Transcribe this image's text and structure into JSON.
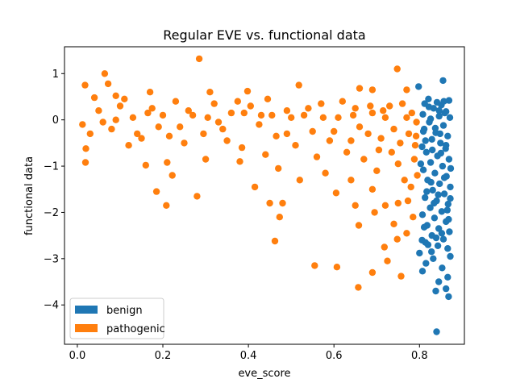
{
  "chart_data": {
    "type": "scatter",
    "title": "Regular EVE vs. functional data",
    "xlabel": "eve_score",
    "ylabel": "functional data",
    "xlim": [
      -0.03,
      0.905
    ],
    "ylim": [
      -4.85,
      1.58
    ],
    "xticks": [
      0.0,
      0.2,
      0.4,
      0.6,
      0.8
    ],
    "xtick_labels": [
      "0.0",
      "0.2",
      "0.4",
      "0.6",
      "0.8"
    ],
    "yticks": [
      1,
      0,
      -1,
      -2,
      -3,
      -4
    ],
    "ytick_labels": [
      "1",
      "0",
      "−1",
      "−2",
      "−3",
      "−4"
    ],
    "grid": false,
    "legend_position": "lower-left",
    "series": [
      {
        "name": "benign",
        "color": "#1f77b4",
        "points": [
          [
            0.798,
            0.72
          ],
          [
            0.855,
            0.85
          ],
          [
            0.8,
            -2.88
          ],
          [
            0.84,
            -4.58
          ],
          [
            0.838,
            -3.7
          ],
          [
            0.807,
            -3.27
          ],
          [
            0.815,
            -3.1
          ],
          [
            0.868,
            -3.82
          ],
          [
            0.845,
            -3.5
          ],
          [
            0.862,
            -3.65
          ],
          [
            0.828,
            -2.85
          ],
          [
            0.872,
            -2.95
          ],
          [
            0.832,
            -3.0
          ],
          [
            0.853,
            -3.2
          ],
          [
            0.806,
            -2.6
          ],
          [
            0.866,
            -3.4
          ],
          [
            0.821,
            0.45
          ],
          [
            0.841,
            0.38
          ],
          [
            0.869,
            0.42
          ],
          [
            0.812,
            0.35
          ],
          [
            0.851,
            0.32
          ],
          [
            0.833,
            0.25
          ],
          [
            0.862,
            0.18
          ],
          [
            0.808,
            0.12
          ],
          [
            0.846,
            0.08
          ],
          [
            0.871,
            0.05
          ],
          [
            0.823,
            -0.05
          ],
          [
            0.856,
            -0.12
          ],
          [
            0.811,
            -0.2
          ],
          [
            0.838,
            -0.28
          ],
          [
            0.866,
            -0.35
          ],
          [
            0.829,
            -0.42
          ],
          [
            0.849,
            -0.5
          ],
          [
            0.806,
            -0.58
          ],
          [
            0.861,
            -0.62
          ],
          [
            0.816,
            -0.7
          ],
          [
            0.842,
            -0.78
          ],
          [
            0.869,
            -0.85
          ],
          [
            0.826,
            -0.92
          ],
          [
            0.854,
            -1.0
          ],
          [
            0.809,
            -1.08
          ],
          [
            0.836,
            -1.15
          ],
          [
            0.863,
            -1.22
          ],
          [
            0.819,
            -1.3
          ],
          [
            0.847,
            -1.38
          ],
          [
            0.872,
            -1.45
          ],
          [
            0.831,
            -1.52
          ],
          [
            0.858,
            -1.6
          ],
          [
            0.813,
            -1.68
          ],
          [
            0.84,
            -1.75
          ],
          [
            0.867,
            -1.82
          ],
          [
            0.825,
            -1.9
          ],
          [
            0.852,
            -1.98
          ],
          [
            0.807,
            -2.05
          ],
          [
            0.835,
            -2.12
          ],
          [
            0.862,
            -2.2
          ],
          [
            0.818,
            -2.28
          ],
          [
            0.845,
            -2.35
          ],
          [
            0.87,
            -2.42
          ],
          [
            0.829,
            -2.5
          ],
          [
            0.856,
            -2.58
          ],
          [
            0.814,
            -2.65
          ],
          [
            0.843,
            -2.72
          ],
          [
            0.866,
            -2.78
          ],
          [
            0.822,
            0.28
          ],
          [
            0.859,
            0.15
          ],
          [
            0.837,
            -0.18
          ],
          [
            0.814,
            -0.45
          ],
          [
            0.85,
            -0.72
          ],
          [
            0.873,
            -1.05
          ],
          [
            0.827,
            -1.35
          ],
          [
            0.844,
            -1.62
          ],
          [
            0.865,
            -1.95
          ],
          [
            0.811,
            -2.32
          ],
          [
            0.839,
            -2.55
          ],
          [
            0.857,
            0.4
          ],
          [
            0.826,
            0.02
          ],
          [
            0.848,
            -0.3
          ],
          [
            0.803,
            -0.95
          ],
          [
            0.834,
            -1.8
          ],
          [
            0.868,
            -2.15
          ],
          [
            0.82,
            -2.7
          ],
          [
            0.846,
            0.2
          ],
          [
            0.862,
            -0.55
          ],
          [
            0.817,
            -1.55
          ],
          [
            0.852,
            -2.45
          ],
          [
            0.83,
            -0.65
          ],
          [
            0.858,
            -1.25
          ],
          [
            0.872,
            -1.7
          ],
          [
            0.809,
            -0.25
          ]
        ]
      },
      {
        "name": "pathogenic",
        "color": "#ff7f0e",
        "points": [
          [
            0.012,
            -0.1
          ],
          [
            0.018,
            0.75
          ],
          [
            0.02,
            -0.62
          ],
          [
            0.019,
            -0.92
          ],
          [
            0.064,
            1.0
          ],
          [
            0.072,
            0.78
          ],
          [
            0.09,
            0.52
          ],
          [
            0.04,
            0.48
          ],
          [
            0.285,
            1.32
          ],
          [
            0.222,
            -1.2
          ],
          [
            0.185,
            -1.55
          ],
          [
            0.208,
            -1.85
          ],
          [
            0.28,
            -1.65
          ],
          [
            0.415,
            -1.45
          ],
          [
            0.45,
            -1.8
          ],
          [
            0.473,
            -2.1
          ],
          [
            0.462,
            -2.62
          ],
          [
            0.48,
            -1.8
          ],
          [
            0.555,
            -3.15
          ],
          [
            0.607,
            -3.18
          ],
          [
            0.657,
            -3.62
          ],
          [
            0.69,
            -3.3
          ],
          [
            0.725,
            -3.05
          ],
          [
            0.757,
            -3.38
          ],
          [
            0.748,
            -2.58
          ],
          [
            0.718,
            -2.75
          ],
          [
            0.748,
            1.1
          ],
          [
            0.518,
            0.75
          ],
          [
            0.66,
            0.68
          ],
          [
            0.69,
            0.65
          ],
          [
            0.77,
            0.65
          ],
          [
            0.398,
            0.62
          ],
          [
            0.31,
            0.6
          ],
          [
            0.17,
            0.6
          ],
          [
            0.605,
            -1.58
          ],
          [
            0.65,
            -1.85
          ],
          [
            0.658,
            -2.28
          ],
          [
            0.695,
            -2.0
          ],
          [
            0.75,
            -1.8
          ],
          [
            0.773,
            -1.75
          ],
          [
            0.785,
            -2.1
          ],
          [
            0.77,
            -2.45
          ],
          [
            0.74,
            -2.25
          ],
          [
            0.72,
            -1.85
          ],
          [
            0.69,
            -1.5
          ],
          [
            0.64,
            -1.3
          ],
          [
            0.58,
            -1.15
          ],
          [
            0.52,
            -1.3
          ],
          [
            0.47,
            -1.05
          ],
          [
            0.38,
            -0.9
          ],
          [
            0.3,
            -0.85
          ],
          [
            0.21,
            -0.92
          ],
          [
            0.16,
            -0.98
          ],
          [
            0.12,
            -0.55
          ],
          [
            0.03,
            -0.3
          ],
          [
            0.05,
            0.2
          ],
          [
            0.08,
            -0.2
          ],
          [
            0.1,
            0.3
          ],
          [
            0.13,
            0.05
          ],
          [
            0.15,
            -0.4
          ],
          [
            0.175,
            0.25
          ],
          [
            0.19,
            -0.15
          ],
          [
            0.23,
            0.4
          ],
          [
            0.25,
            -0.5
          ],
          [
            0.27,
            0.1
          ],
          [
            0.295,
            -0.3
          ],
          [
            0.32,
            0.35
          ],
          [
            0.34,
            -0.2
          ],
          [
            0.36,
            0.15
          ],
          [
            0.385,
            -0.6
          ],
          [
            0.405,
            0.3
          ],
          [
            0.425,
            -0.1
          ],
          [
            0.445,
            0.45
          ],
          [
            0.465,
            -0.35
          ],
          [
            0.49,
            0.2
          ],
          [
            0.51,
            -0.55
          ],
          [
            0.53,
            0.1
          ],
          [
            0.55,
            -0.25
          ],
          [
            0.57,
            0.35
          ],
          [
            0.59,
            -0.45
          ],
          [
            0.61,
            0.05
          ],
          [
            0.63,
            -0.7
          ],
          [
            0.65,
            0.25
          ],
          [
            0.67,
            -0.85
          ],
          [
            0.69,
            0.15
          ],
          [
            0.71,
            -0.4
          ],
          [
            0.73,
            0.3
          ],
          [
            0.75,
            -0.95
          ],
          [
            0.77,
            0.05
          ],
          [
            0.79,
            -0.55
          ],
          [
            0.795,
            -1.2
          ],
          [
            0.78,
            -1.45
          ],
          [
            0.76,
            0.35
          ],
          [
            0.74,
            -0.2
          ],
          [
            0.7,
            -1.1
          ],
          [
            0.68,
            -0.3
          ],
          [
            0.62,
            0.4
          ],
          [
            0.56,
            -0.8
          ],
          [
            0.5,
            0.05
          ],
          [
            0.44,
            -0.75
          ],
          [
            0.35,
            -0.45
          ],
          [
            0.26,
            0.2
          ],
          [
            0.14,
            -0.3
          ],
          [
            0.06,
            -0.05
          ],
          [
            0.11,
            0.45
          ],
          [
            0.2,
            0.1
          ],
          [
            0.33,
            -0.05
          ],
          [
            0.43,
            0.1
          ],
          [
            0.54,
            0.25
          ],
          [
            0.66,
            -0.15
          ],
          [
            0.72,
            0.05
          ],
          [
            0.775,
            -0.3
          ],
          [
            0.788,
            -0.85
          ],
          [
            0.793,
            -0.05
          ],
          [
            0.765,
            -1.3
          ],
          [
            0.705,
            -0.65
          ],
          [
            0.6,
            -0.25
          ],
          [
            0.49,
            -0.3
          ],
          [
            0.39,
            0.15
          ],
          [
            0.24,
            -0.15
          ],
          [
            0.09,
            0.0
          ],
          [
            0.165,
            0.15
          ],
          [
            0.215,
            -0.35
          ],
          [
            0.305,
            0.05
          ],
          [
            0.375,
            0.4
          ],
          [
            0.455,
            0.1
          ],
          [
            0.575,
            0.05
          ],
          [
            0.64,
            -0.45
          ],
          [
            0.685,
            0.3
          ],
          [
            0.735,
            -0.7
          ],
          [
            0.782,
            0.15
          ],
          [
            0.792,
            -0.35
          ],
          [
            0.755,
            -0.5
          ],
          [
            0.715,
            0.2
          ],
          [
            0.645,
            0.1
          ]
        ]
      }
    ]
  }
}
